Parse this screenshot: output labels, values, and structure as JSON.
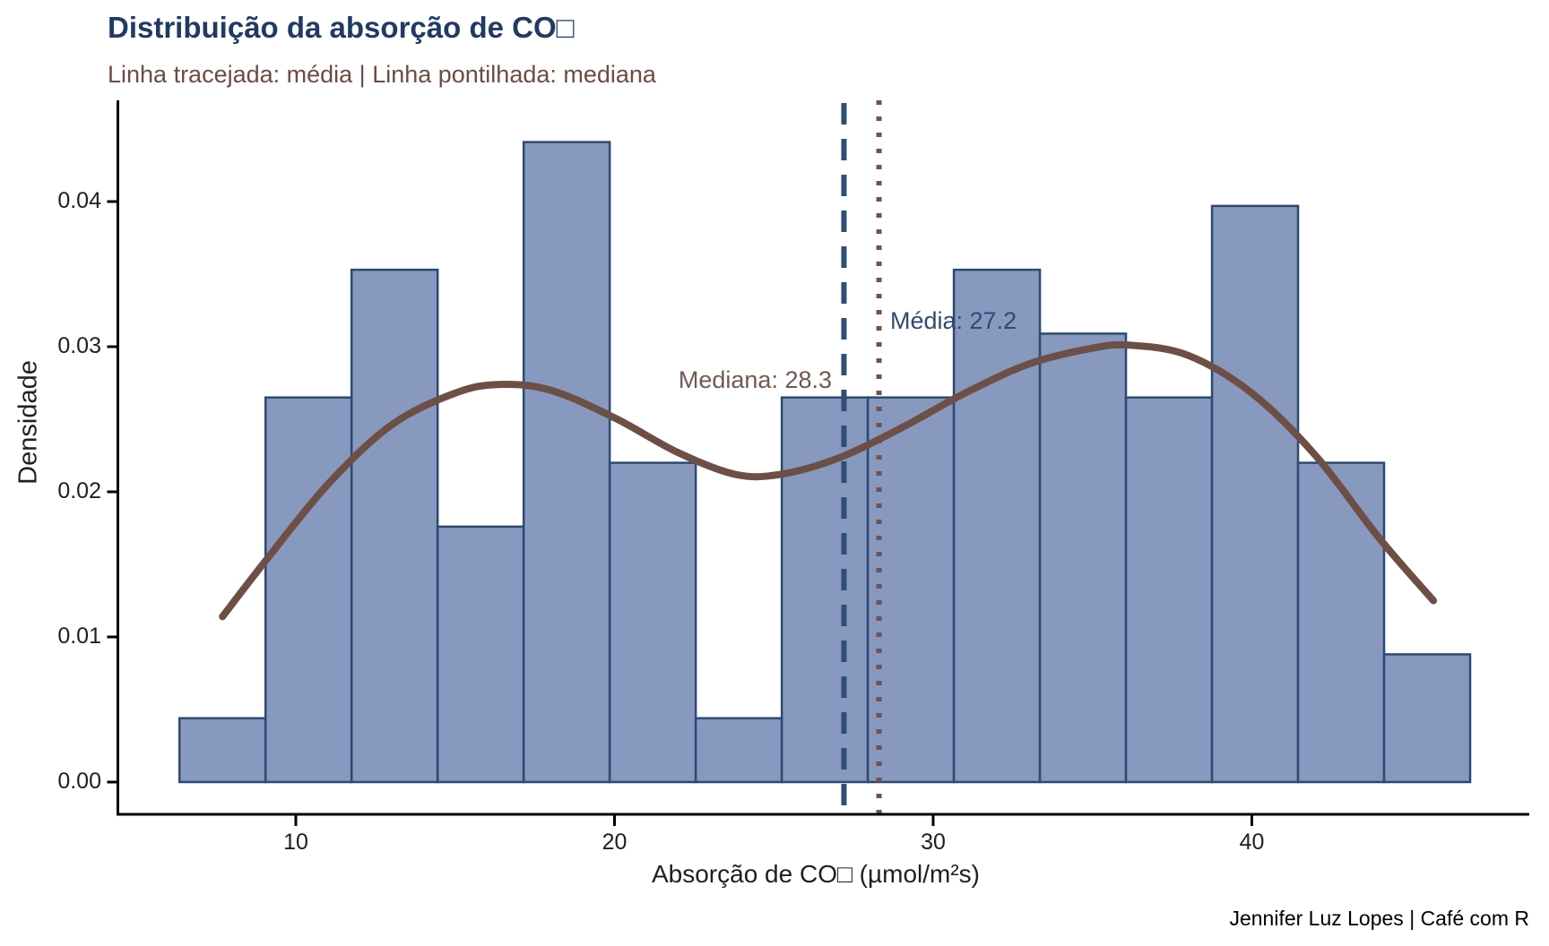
{
  "title": "Distribuição da absorção de CO□",
  "subtitle": "Linha tracejada: média | Linha pontilhada: mediana",
  "caption": "Jennifer Luz Lopes | Café com R",
  "colors": {
    "title": "#203A61",
    "subtitle": "#6D4C41",
    "bar_fill": "#8799BF",
    "bar_border": "#2C4A72",
    "mean_line": "#2F4E75",
    "median_line": "#75514A",
    "curve": "#6D4F46",
    "mean_label": "#2F4A70",
    "median_label": "#6E5A52",
    "axis": "#000000",
    "tick_text": "#1F1F1F"
  },
  "chart_data": {
    "type": "bar",
    "subtype": "histogram-with-density-curve",
    "title": "Distribuição da absorção de CO□",
    "xlabel": "Absorção de CO□ (µmol/m²s)",
    "ylabel": "Densidade",
    "xlim": [
      5.3,
      48.7
    ],
    "ylim": [
      0,
      0.047
    ],
    "grid": false,
    "legend": "none",
    "x_ticks": [
      {
        "label": "10",
        "value": 10
      },
      {
        "label": "20",
        "value": 20
      },
      {
        "label": "30",
        "value": 30
      },
      {
        "label": "40",
        "value": 40
      }
    ],
    "y_ticks": [
      {
        "label": "0.00",
        "value": 0.0
      },
      {
        "label": "0.01",
        "value": 0.01
      },
      {
        "label": "0.02",
        "value": 0.02
      },
      {
        "label": "0.03",
        "value": 0.03
      },
      {
        "label": "0.04",
        "value": 0.04
      }
    ],
    "bins": {
      "start": 6.35,
      "width": 2.7,
      "counts": [
        1,
        6,
        8,
        4,
        10,
        5,
        1,
        6,
        6,
        8,
        7,
        6,
        9,
        5,
        2
      ],
      "densities": [
        0.0044,
        0.0265,
        0.0353,
        0.0176,
        0.0441,
        0.022,
        0.0044,
        0.0265,
        0.0265,
        0.0353,
        0.0309,
        0.0265,
        0.0397,
        0.022,
        0.0088
      ]
    },
    "density_curve": {
      "x": [
        7.7,
        9,
        11,
        13,
        15,
        16.4,
        18,
        20,
        22,
        23.8,
        25.2,
        27,
        29,
        31,
        33,
        35,
        36.2,
        38,
        40,
        42,
        44,
        45.7
      ],
      "y": [
        0.0114,
        0.0151,
        0.0205,
        0.0246,
        0.0268,
        0.0274,
        0.027,
        0.0251,
        0.0227,
        0.0212,
        0.0212,
        0.0223,
        0.0244,
        0.0268,
        0.0288,
        0.0299,
        0.0301,
        0.0294,
        0.0268,
        0.0225,
        0.0168,
        0.0125
      ]
    },
    "mean": {
      "value": 27.2,
      "label": "Média: 27.2",
      "line_style": "dashed"
    },
    "median": {
      "value": 28.3,
      "label": "Mediana: 28.3",
      "line_style": "dotted"
    }
  }
}
